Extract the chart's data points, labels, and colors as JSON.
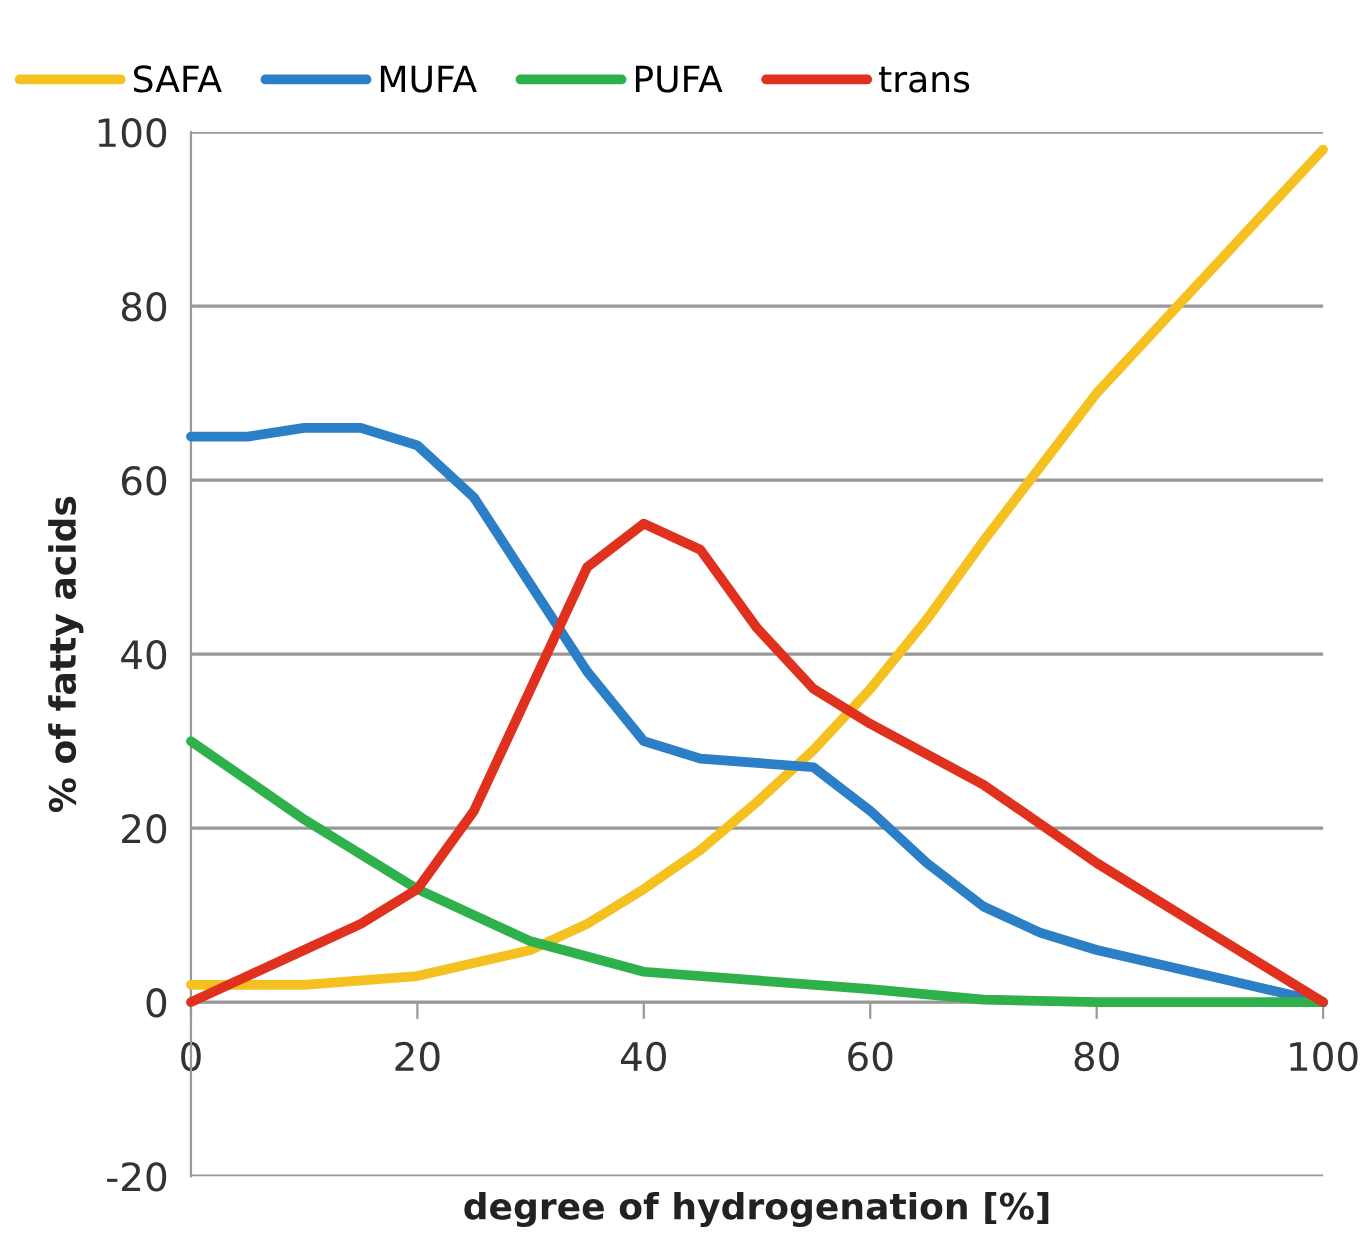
{
  "chart_data": {
    "type": "line",
    "xlabel": "degree of hydrogenation [%]",
    "ylabel": "% of fatty acids",
    "xlim": [
      0,
      100
    ],
    "xticks": [
      0,
      20,
      40,
      60,
      80,
      100
    ],
    "ylim": [
      -20,
      100
    ],
    "yticks": [
      -20,
      0,
      20,
      40,
      60,
      80,
      100
    ],
    "grid": "y",
    "legend": "top",
    "marker": "none",
    "line_style": "solid",
    "series": [
      {
        "name": "SAFA",
        "color": "#f5c120",
        "x": [
          0,
          10,
          20,
          25,
          30,
          35,
          40,
          45,
          50,
          55,
          60,
          65,
          70,
          80,
          90,
          100
        ],
        "values": [
          2,
          2,
          3,
          4.5,
          6,
          9,
          13,
          17.5,
          23,
          29,
          36,
          44,
          53,
          70,
          84,
          98
        ]
      },
      {
        "name": "MUFA",
        "color": "#2a7fc6",
        "x": [
          0,
          5,
          10,
          15,
          20,
          25,
          30,
          35,
          40,
          45,
          50,
          55,
          60,
          65,
          70,
          75,
          80,
          90,
          100
        ],
        "values": [
          65,
          65,
          66,
          66,
          64,
          58,
          48,
          38,
          30,
          28,
          27.5,
          27,
          22,
          16,
          11,
          8,
          6,
          3,
          0
        ]
      },
      {
        "name": "PUFA",
        "color": "#2eb04b",
        "x": [
          0,
          10,
          20,
          30,
          40,
          50,
          60,
          70,
          80,
          90,
          100
        ],
        "values": [
          30,
          21,
          13,
          7,
          3.5,
          2.5,
          1.5,
          0.3,
          0,
          0,
          0
        ]
      },
      {
        "name": "trans",
        "color": "#e0301e",
        "x": [
          0,
          10,
          15,
          20,
          25,
          30,
          35,
          40,
          45,
          50,
          55,
          60,
          70,
          80,
          90,
          100
        ],
        "values": [
          0,
          6,
          9,
          13,
          22,
          36,
          50,
          55,
          52,
          43,
          36,
          32,
          25,
          16,
          8,
          0
        ]
      }
    ]
  }
}
